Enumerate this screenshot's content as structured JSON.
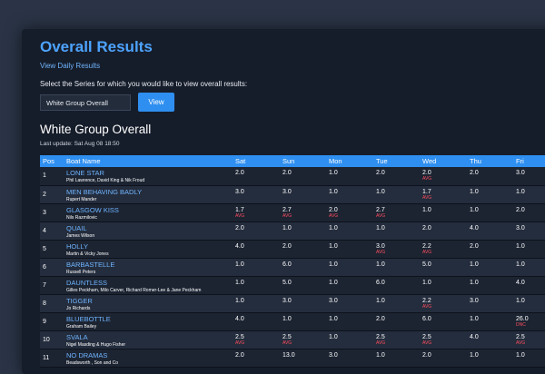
{
  "page": {
    "title": "Overall Results",
    "daily_link": "View Daily Results",
    "series_prompt": "Select the Series for which you would like to view overall results:",
    "series_selected": "White Group Overall",
    "view_button": "View",
    "results_heading": "White Group Overall",
    "last_update": "Last update: Sat Aug 08 18:50"
  },
  "table": {
    "headers": [
      "Pos",
      "Boat Name",
      "Sat",
      "Sun",
      "Mon",
      "Tue",
      "Wed",
      "Thu",
      "Fri"
    ],
    "rows": [
      {
        "pos": "1",
        "boat": "LONE STAR",
        "crew": "Phil Lawrence, David King & Nik Froud",
        "scores": [
          {
            "v": "2.0",
            "t": ""
          },
          {
            "v": "2.0",
            "t": ""
          },
          {
            "v": "1.0",
            "t": ""
          },
          {
            "v": "2.0",
            "t": ""
          },
          {
            "v": "2.0",
            "t": "AVG"
          },
          {
            "v": "2.0",
            "t": ""
          },
          {
            "v": "3.0",
            "t": ""
          }
        ]
      },
      {
        "pos": "2",
        "boat": "MEN BEHAVING BADLY",
        "crew": "Rupert Mander",
        "scores": [
          {
            "v": "3.0",
            "t": ""
          },
          {
            "v": "3.0",
            "t": ""
          },
          {
            "v": "1.0",
            "t": ""
          },
          {
            "v": "1.0",
            "t": ""
          },
          {
            "v": "1.7",
            "t": "AVG"
          },
          {
            "v": "1.0",
            "t": ""
          },
          {
            "v": "1.0",
            "t": ""
          }
        ]
      },
      {
        "pos": "3",
        "boat": "GLASGOW KISS",
        "crew": "Nils Razmilovic",
        "scores": [
          {
            "v": "1.7",
            "t": "AVG"
          },
          {
            "v": "2.7",
            "t": "AVG"
          },
          {
            "v": "2.0",
            "t": "AVG"
          },
          {
            "v": "2.7",
            "t": "AVG"
          },
          {
            "v": "1.0",
            "t": ""
          },
          {
            "v": "1.0",
            "t": ""
          },
          {
            "v": "2.0",
            "t": ""
          }
        ]
      },
      {
        "pos": "4",
        "boat": "QUAIL",
        "crew": "James Wilson",
        "scores": [
          {
            "v": "2.0",
            "t": ""
          },
          {
            "v": "1.0",
            "t": ""
          },
          {
            "v": "1.0",
            "t": ""
          },
          {
            "v": "1.0",
            "t": ""
          },
          {
            "v": "2.0",
            "t": ""
          },
          {
            "v": "4.0",
            "t": ""
          },
          {
            "v": "3.0",
            "t": ""
          }
        ]
      },
      {
        "pos": "5",
        "boat": "HOLLY",
        "crew": "Martin & Vicky Jones",
        "scores": [
          {
            "v": "4.0",
            "t": ""
          },
          {
            "v": "2.0",
            "t": ""
          },
          {
            "v": "1.0",
            "t": ""
          },
          {
            "v": "3.0",
            "t": "AVG"
          },
          {
            "v": "2.2",
            "t": "AVG"
          },
          {
            "v": "2.0",
            "t": ""
          },
          {
            "v": "1.0",
            "t": ""
          }
        ]
      },
      {
        "pos": "6",
        "boat": "BARBASTELLE",
        "crew": "Russell Peters",
        "scores": [
          {
            "v": "1.0",
            "t": ""
          },
          {
            "v": "6.0",
            "t": ""
          },
          {
            "v": "1.0",
            "t": ""
          },
          {
            "v": "1.0",
            "t": ""
          },
          {
            "v": "5.0",
            "t": ""
          },
          {
            "v": "1.0",
            "t": ""
          },
          {
            "v": "1.0",
            "t": ""
          }
        ]
      },
      {
        "pos": "7",
        "boat": "DAUNTLESS",
        "crew": "Gilles Peckham, Milo Carver, Richard Romer-Lee & Jane Peckham",
        "scores": [
          {
            "v": "1.0",
            "t": ""
          },
          {
            "v": "5.0",
            "t": ""
          },
          {
            "v": "1.0",
            "t": ""
          },
          {
            "v": "6.0",
            "t": ""
          },
          {
            "v": "1.0",
            "t": ""
          },
          {
            "v": "1.0",
            "t": ""
          },
          {
            "v": "4.0",
            "t": ""
          }
        ]
      },
      {
        "pos": "8",
        "boat": "TIGGER",
        "crew": "Jo Richards",
        "scores": [
          {
            "v": "1.0",
            "t": ""
          },
          {
            "v": "3.0",
            "t": ""
          },
          {
            "v": "3.0",
            "t": ""
          },
          {
            "v": "1.0",
            "t": ""
          },
          {
            "v": "2.2",
            "t": "AVG"
          },
          {
            "v": "3.0",
            "t": ""
          },
          {
            "v": "1.0",
            "t": ""
          }
        ]
      },
      {
        "pos": "9",
        "boat": "BLUEBOTTLE",
        "crew": "Graham Bailey",
        "scores": [
          {
            "v": "4.0",
            "t": ""
          },
          {
            "v": "1.0",
            "t": ""
          },
          {
            "v": "1.0",
            "t": ""
          },
          {
            "v": "2.0",
            "t": ""
          },
          {
            "v": "6.0",
            "t": ""
          },
          {
            "v": "1.0",
            "t": ""
          },
          {
            "v": "26.0",
            "t": "DNC"
          }
        ]
      },
      {
        "pos": "10",
        "boat": "SVALA",
        "crew": "Nigel Masding & Hugo Fisher",
        "scores": [
          {
            "v": "2.5",
            "t": "AVG"
          },
          {
            "v": "2.5",
            "t": "AVG"
          },
          {
            "v": "1.0",
            "t": ""
          },
          {
            "v": "2.5",
            "t": "AVG"
          },
          {
            "v": "2.5",
            "t": "AVG"
          },
          {
            "v": "4.0",
            "t": ""
          },
          {
            "v": "2.5",
            "t": "AVG"
          }
        ]
      },
      {
        "pos": "11",
        "boat": "NO DRAMAS",
        "crew": "Beadsworth , Son and Co",
        "scores": [
          {
            "v": "2.0",
            "t": ""
          },
          {
            "v": "13.0",
            "t": ""
          },
          {
            "v": "3.0",
            "t": ""
          },
          {
            "v": "1.0",
            "t": ""
          },
          {
            "v": "2.0",
            "t": ""
          },
          {
            "v": "1.0",
            "t": ""
          },
          {
            "v": "1.0",
            "t": ""
          }
        ]
      }
    ]
  }
}
